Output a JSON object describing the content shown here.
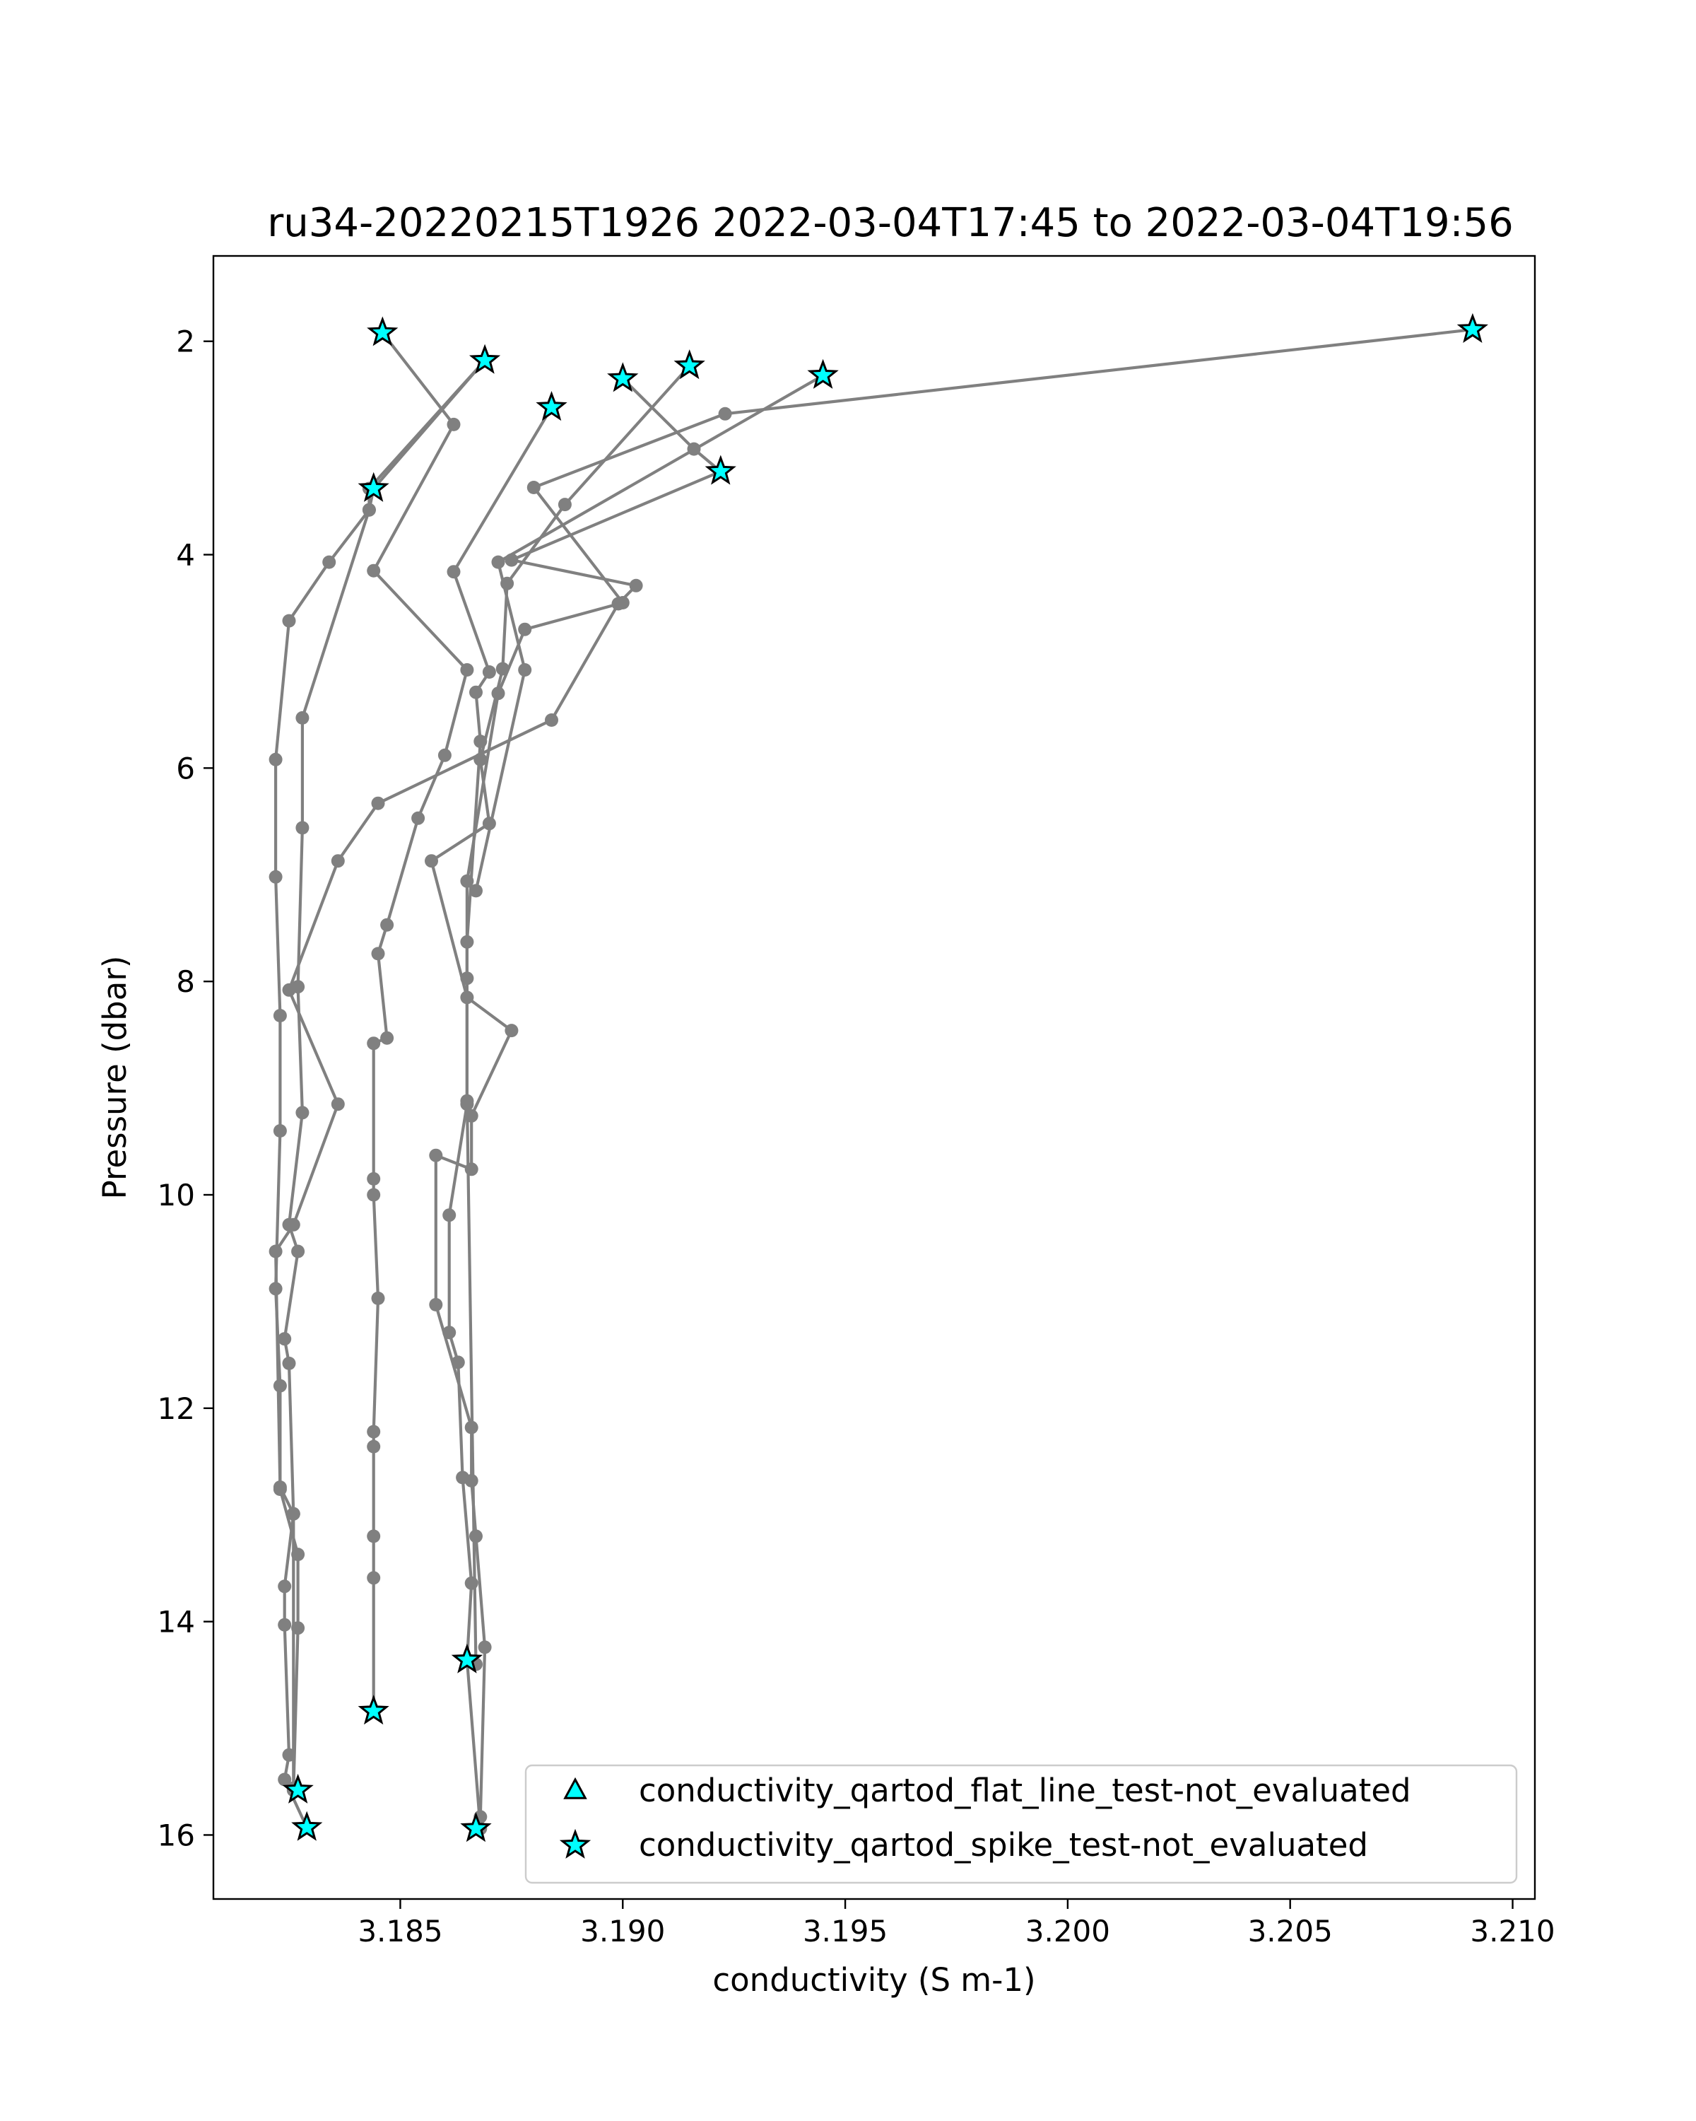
{
  "chart_data": {
    "type": "line",
    "title": "ru34-20220215T1926 2022-03-04T17:45 to 2022-03-04T19:56",
    "xlabel": "conductivity (S m-1)",
    "ylabel": "Pressure (dbar)",
    "xlim": [
      3.1808,
      3.2105
    ],
    "ylim": [
      16.6,
      1.2
    ],
    "y_inverted": true,
    "grid": false,
    "xticks": [
      3.185,
      3.19,
      3.195,
      3.2,
      3.205,
      3.21
    ],
    "xtick_labels": [
      "3.185",
      "3.190",
      "3.195",
      "3.200",
      "3.205",
      "3.210"
    ],
    "yticks": [
      2,
      4,
      6,
      8,
      10,
      12,
      14,
      16
    ],
    "ytick_labels": [
      "2",
      "4",
      "6",
      "8",
      "10",
      "12",
      "14",
      "16"
    ],
    "line_color": "#808080",
    "marker_color": "#808080",
    "flag_color": "#00ffff",
    "legend_position": "lower-right",
    "legend": [
      {
        "label": "conductivity_qartod_flat_line_test-not_evaluated",
        "marker": "triangle"
      },
      {
        "label": "conductivity_qartod_spike_test-not_evaluated",
        "marker": "star"
      }
    ],
    "profiles": [
      {
        "x": [
          3.1846,
          3.1862,
          3.1844,
          3.1865,
          3.186,
          3.1854,
          3.1847,
          3.1845,
          3.1847,
          3.1844,
          3.1844,
          3.1844,
          3.1845,
          3.1844,
          3.1844,
          3.1844,
          3.1844,
          3.1844,
          3.1844
        ],
        "y": [
          1.92,
          2.78,
          4.15,
          5.08,
          5.88,
          6.47,
          7.47,
          7.74,
          8.53,
          8.58,
          9.85,
          10.0,
          10.97,
          12.22,
          12.36,
          13.2,
          13.59,
          14.84,
          14.84
        ]
      },
      {
        "x": [
          3.1869,
          3.1844,
          3.1843,
          3.1834,
          3.1825,
          3.1822,
          3.1822,
          3.1823,
          3.1823,
          3.1822,
          3.1823,
          3.1823,
          3.1827,
          3.1827,
          3.1826
        ],
        "y": [
          2.18,
          3.38,
          3.58,
          4.07,
          4.62,
          5.92,
          7.02,
          8.32,
          9.4,
          10.88,
          11.79,
          12.76,
          13.37,
          14.06,
          15.58
        ]
      },
      {
        "x": [
          3.1869,
          3.1843,
          3.1843,
          3.1828,
          3.1828,
          3.1827,
          3.1828,
          3.1825,
          3.1827,
          3.1824,
          3.1825,
          3.1826,
          3.1824,
          3.1824,
          3.1825,
          3.1824,
          3.1829
        ],
        "y": [
          2.18,
          3.38,
          3.58,
          5.53,
          6.56,
          8.05,
          9.23,
          10.28,
          10.53,
          11.35,
          11.58,
          12.99,
          13.67,
          14.03,
          15.25,
          15.48,
          15.93
        ]
      },
      {
        "x": [
          3.1884,
          3.1862,
          3.187,
          3.1867,
          3.1868,
          3.1865,
          3.1865,
          3.1865,
          3.1861,
          3.1861,
          3.1863,
          3.1864,
          3.1866,
          3.1865,
          3.1868
        ],
        "y": [
          2.62,
          4.16,
          5.1,
          5.29,
          5.75,
          7.63,
          7.97,
          9.15,
          10.19,
          11.29,
          11.57,
          12.65,
          13.64,
          14.36,
          15.94
        ]
      },
      {
        "x": [
          3.1915,
          3.1887,
          3.1874,
          3.1873,
          3.1868,
          3.187,
          3.1857,
          3.1865,
          3.1875,
          3.1866,
          3.1866,
          3.1858,
          3.1858,
          3.1866,
          3.1866,
          3.1867,
          3.1869,
          3.1868
        ],
        "y": [
          2.23,
          3.53,
          4.27,
          5.07,
          5.92,
          6.52,
          6.87,
          8.15,
          8.46,
          9.26,
          9.76,
          9.63,
          11.03,
          12.18,
          12.68,
          13.2,
          14.24,
          15.83
        ]
      },
      {
        "x": [
          3.19,
          3.1916,
          3.1922,
          3.1875,
          3.1903,
          3.1899,
          3.1884,
          3.1845,
          3.1836,
          3.1825,
          3.1836,
          3.1826,
          3.1822,
          3.1823,
          3.1826,
          3.1826
        ],
        "y": [
          2.35,
          3.01,
          3.22,
          4.05,
          4.29,
          4.46,
          5.55,
          6.33,
          6.87,
          8.08,
          9.15,
          10.28,
          10.53,
          12.74,
          12.99,
          15.56
        ]
      },
      {
        "x": [
          3.2091,
          3.1923,
          3.188,
          3.19,
          3.1878,
          3.1872,
          3.1865,
          3.1865,
          3.1867
        ],
        "y": [
          1.89,
          2.68,
          3.37,
          4.45,
          4.7,
          5.3,
          7.06,
          9.12,
          14.4
        ]
      },
      {
        "x": [
          3.1945,
          3.1872,
          3.1878,
          3.1867
        ],
        "y": [
          2.32,
          4.07,
          5.08,
          7.15
        ]
      }
    ],
    "flags_spike_test": {
      "x": [
        3.1846,
        3.1869,
        3.1844,
        3.1884,
        3.19,
        3.1915,
        3.1945,
        3.1922,
        3.2091,
        3.1844,
        3.1865,
        3.1827,
        3.1829,
        3.1867
      ],
      "y": [
        1.92,
        2.18,
        3.38,
        2.62,
        2.35,
        2.23,
        2.32,
        3.22,
        1.89,
        14.84,
        14.36,
        15.58,
        15.93,
        15.94
      ]
    },
    "flags_flat_line_test": {
      "x": [],
      "y": []
    }
  }
}
